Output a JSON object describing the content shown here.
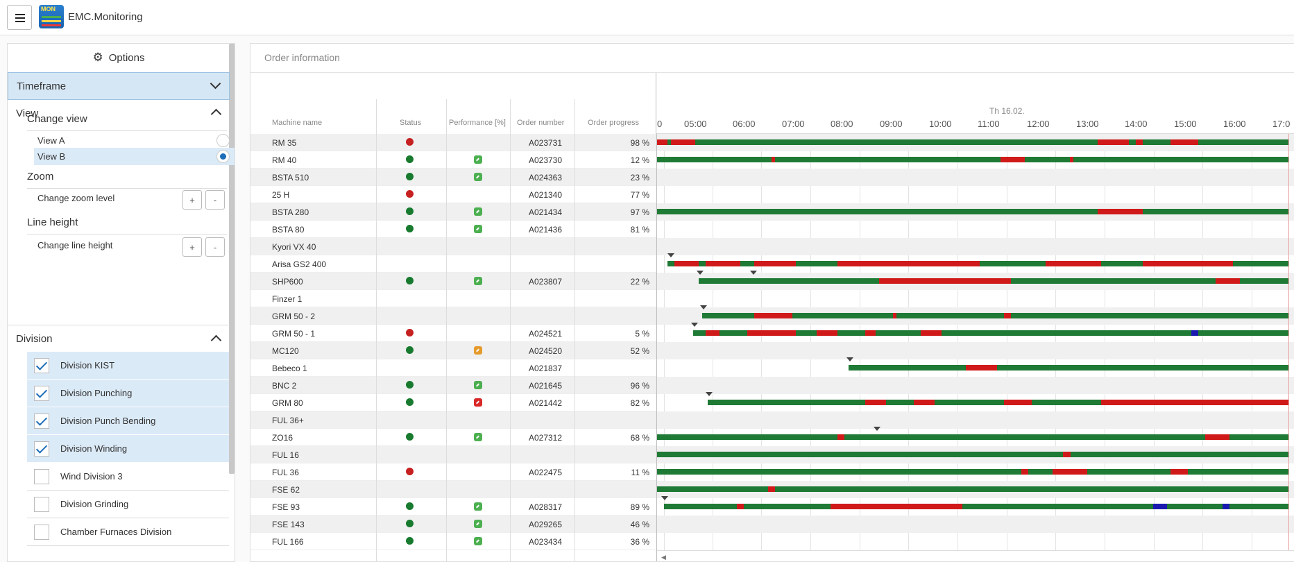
{
  "app": {
    "title": "EMC.Monitoring",
    "logo_text": "MON"
  },
  "options": {
    "header": "Options",
    "timeframe": "Timeframe",
    "view": {
      "title": "View",
      "change_view": "Change view",
      "options": [
        {
          "label": "View A",
          "selected": false
        },
        {
          "label": "View B",
          "selected": true
        }
      ],
      "zoom_title": "Zoom",
      "zoom_label": "Change zoom level",
      "line_title": "Line height",
      "line_label": "Change line height",
      "plus": "+",
      "minus": "-"
    },
    "division": {
      "title": "Division",
      "items": [
        {
          "label": "Division KIST",
          "checked": true
        },
        {
          "label": "Division Punching",
          "checked": true
        },
        {
          "label": "Division Punch Bending",
          "checked": true
        },
        {
          "label": "Division Winding",
          "checked": true
        },
        {
          "label": "Wind Division 3",
          "checked": false
        },
        {
          "label": "Division Grinding",
          "checked": false
        },
        {
          "label": "Chamber Furnaces Division",
          "checked": false
        }
      ]
    }
  },
  "main": {
    "title": "Order information",
    "columns": {
      "name": "Machine name",
      "status": "Status",
      "performance": "Performance [%]",
      "order": "Order number",
      "progress": "Order progress"
    },
    "date": "Th 16.02.",
    "ticks": [
      "0",
      "05:00",
      "06:00",
      "07:00",
      "08:00",
      "09:00",
      "10:00",
      "11:00",
      "12:00",
      "13:00",
      "14:00",
      "15:00",
      "16:00",
      "17:0"
    ],
    "colors": {
      "green": "#1e7a34",
      "red": "#d01a1a",
      "orange": "#e0a030",
      "blue": "#1a1ab0",
      "perf_green": "#4caf50",
      "perf_red": "#d82828",
      "perf_orange": "#e59b2b"
    },
    "rows": [
      {
        "name": "RM 35",
        "status": "red",
        "perf": "",
        "order": "A023731",
        "progress": "98 %"
      },
      {
        "name": "RM 40",
        "status": "green",
        "perf": "green",
        "order": "A023730",
        "progress": "12 %"
      },
      {
        "name": "BSTA 510",
        "status": "green",
        "perf": "green",
        "order": "A024363",
        "progress": "23 %"
      },
      {
        "name": "25 H",
        "status": "red",
        "perf": "",
        "order": "A021340",
        "progress": "77 %"
      },
      {
        "name": "BSTA 280",
        "status": "green",
        "perf": "green",
        "order": "A021434",
        "progress": "97 %"
      },
      {
        "name": "BSTA 80",
        "status": "green",
        "perf": "green",
        "order": "A021436",
        "progress": "81 %"
      },
      {
        "name": "Kyori VX 40",
        "status": "",
        "perf": "",
        "order": "",
        "progress": ""
      },
      {
        "name": "Arisa GS2 400",
        "status": "",
        "perf": "",
        "order": "",
        "progress": ""
      },
      {
        "name": "SHP600",
        "status": "green",
        "perf": "green",
        "order": "A023807",
        "progress": "22 %"
      },
      {
        "name": "Finzer 1",
        "status": "",
        "perf": "",
        "order": "",
        "progress": ""
      },
      {
        "name": "GRM 50 - 2",
        "status": "",
        "perf": "",
        "order": "",
        "progress": ""
      },
      {
        "name": "GRM 50 - 1",
        "status": "red",
        "perf": "",
        "order": "A024521",
        "progress": "5 %"
      },
      {
        "name": "MC120",
        "status": "green",
        "perf": "orange",
        "order": "A024520",
        "progress": "52 %"
      },
      {
        "name": "Bebeco 1",
        "status": "",
        "perf": "",
        "order": "A021837",
        "progress": ""
      },
      {
        "name": "BNC 2",
        "status": "green",
        "perf": "green",
        "order": "A021645",
        "progress": "96 %"
      },
      {
        "name": "GRM 80",
        "status": "green",
        "perf": "red",
        "order": "A021442",
        "progress": "82 %"
      },
      {
        "name": "FUL 36+",
        "status": "",
        "perf": "",
        "order": "",
        "progress": ""
      },
      {
        "name": "ZO16",
        "status": "green",
        "perf": "green",
        "order": "A027312",
        "progress": "68 %"
      },
      {
        "name": "FUL 16",
        "status": "",
        "perf": "",
        "order": "",
        "progress": ""
      },
      {
        "name": "FUL 36",
        "status": "red",
        "perf": "",
        "order": "A022475",
        "progress": "11 %"
      },
      {
        "name": "FSE 62",
        "status": "",
        "perf": "",
        "order": "",
        "progress": ""
      },
      {
        "name": "FSE 93",
        "status": "green",
        "perf": "green",
        "order": "A028317",
        "progress": "89 %"
      },
      {
        "name": "FSE 143",
        "status": "green",
        "perf": "green",
        "order": "A029265",
        "progress": "46 %"
      },
      {
        "name": "FUL 166",
        "status": "green",
        "perf": "green",
        "order": "A023434",
        "progress": "36 %"
      }
    ]
  }
}
